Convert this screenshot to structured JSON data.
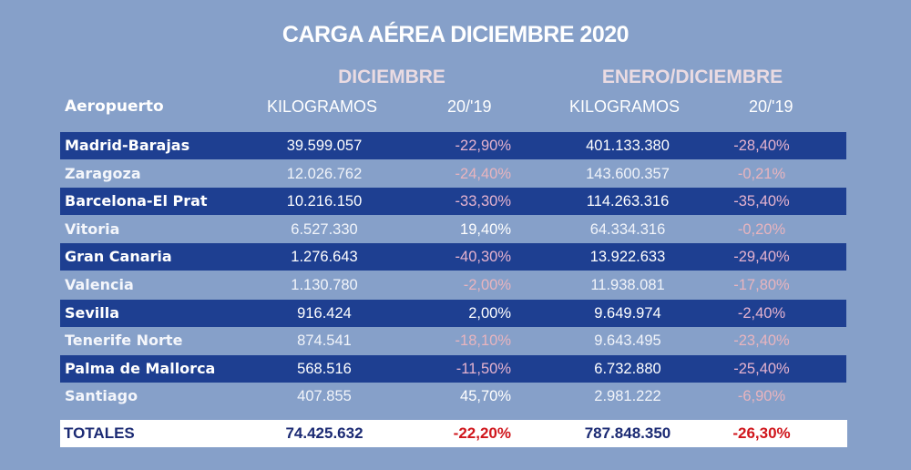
{
  "title": "CARGA AÉREA DICIEMBRE 2020",
  "groups": {
    "diciembre": "DICIEMBRE",
    "enero_diciembre": "ENERO/DICIEMBRE"
  },
  "headers": {
    "airport": "Aeropuerto",
    "kg_dic": "KILOGRAMOS",
    "pct_dic": "20/'19",
    "kg_ene": "KILOGRAMOS",
    "pct_ene": "20/'19"
  },
  "rows": [
    {
      "name": "Madrid-Barajas",
      "kg_dic": "39.599.057",
      "pct_dic": "-22,90%",
      "kg_ene": "401.133.380",
      "pct_ene": "-28,40%"
    },
    {
      "name": "Zaragoza",
      "kg_dic": "12.026.762",
      "pct_dic": "-24,40%",
      "kg_ene": "143.600.357",
      "pct_ene": "-0,21%"
    },
    {
      "name": "Barcelona-El Prat",
      "kg_dic": "10.216.150",
      "pct_dic": "-33,30%",
      "kg_ene": "114.263.316",
      "pct_ene": "-35,40%"
    },
    {
      "name": "Vitoria",
      "kg_dic": "6.527.330",
      "pct_dic": "19,40%",
      "kg_ene": "64.334.316",
      "pct_ene": "-0,20%"
    },
    {
      "name": "Gran Canaria",
      "kg_dic": "1.276.643",
      "pct_dic": "-40,30%",
      "kg_ene": "13.922.633",
      "pct_ene": "-29,40%"
    },
    {
      "name": "Valencia",
      "kg_dic": "1.130.780",
      "pct_dic": "-2,00%",
      "kg_ene": "11.938.081",
      "pct_ene": "-17,80%"
    },
    {
      "name": "Sevilla",
      "kg_dic": "916.424",
      "pct_dic": "2,00%",
      "kg_ene": "9.649.974",
      "pct_ene": "-2,40%"
    },
    {
      "name": "Tenerife Norte",
      "kg_dic": "874.541",
      "pct_dic": "-18,10%",
      "kg_ene": "9.643.495",
      "pct_ene": "-23,40%"
    },
    {
      "name": "Palma de Mallorca",
      "kg_dic": "568.516",
      "pct_dic": "-11,50%",
      "kg_ene": "6.732.880",
      "pct_ene": "-25,40%"
    },
    {
      "name": "Santiago",
      "kg_dic": "407.855",
      "pct_dic": "45,70%",
      "kg_ene": "2.981.222",
      "pct_ene": "-6,90%"
    }
  ],
  "totals": {
    "name": "TOTALES",
    "kg_dic": "74.425.632",
    "pct_dic": "-22,20%",
    "kg_ene": "787.848.350",
    "pct_ene": "-26,30%"
  },
  "colors": {
    "background": "#86a0c9",
    "dark_row": "#1e3f91",
    "negative_total": "#d0161c",
    "totals_text": "#1b2a73"
  }
}
